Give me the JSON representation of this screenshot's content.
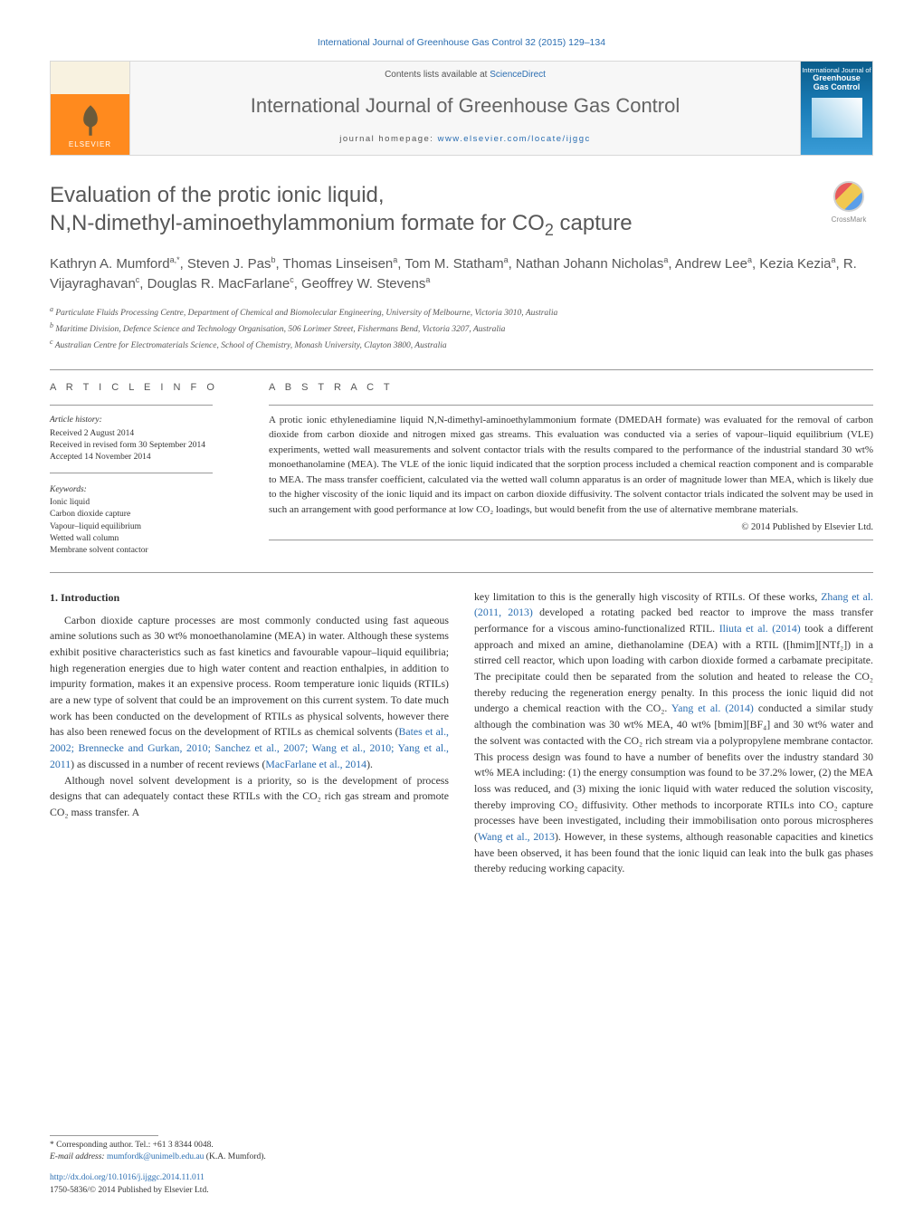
{
  "header_citation": "International Journal of Greenhouse Gas Control 32 (2015) 129–134",
  "masthead": {
    "publisher": "ELSEVIER",
    "contents_prefix": "Contents lists available at ",
    "contents_link": "ScienceDirect",
    "journal_title": "International Journal of Greenhouse Gas Control",
    "homepage_prefix": "journal homepage: ",
    "homepage_url": "www.elsevier.com/locate/ijggc",
    "cover_line1": "International Journal of",
    "cover_line2": "Greenhouse",
    "cover_line3": "Gas Control"
  },
  "crossmark_label": "CrossMark",
  "title_line1": "Evaluation of the protic ionic liquid,",
  "title_line2": "N,N-dimethyl-aminoethylammonium formate for CO",
  "title_sub": "2",
  "title_tail": " capture",
  "authors_html": "Kathryn A. Mumford<sup>a,*</sup>, Steven J. Pas<sup>b</sup>, Thomas Linseisen<sup>a</sup>, Tom M. Statham<sup>a</sup>, Nathan Johann Nicholas<sup>a</sup>, Andrew Lee<sup>a</sup>, Kezia Kezia<sup>a</sup>, R. Vijayraghavan<sup>c</sup>, Douglas R. MacFarlane<sup>c</sup>, Geoffrey W. Stevens<sup>a</sup>",
  "affiliations": {
    "a": "Particulate Fluids Processing Centre, Department of Chemical and Biomolecular Engineering, University of Melbourne, Victoria 3010, Australia",
    "b": "Maritime Division, Defence Science and Technology Organisation, 506 Lorimer Street, Fishermans Bend, Victoria 3207, Australia",
    "c": "Australian Centre for Electromaterials Science, School of Chemistry, Monash University, Clayton 3800, Australia"
  },
  "info_label": "A R T I C L E   I N F O",
  "abstract_label": "A B S T R A C T",
  "history_label": "Article history:",
  "history": {
    "received": "Received 2 August 2014",
    "revised": "Received in revised form 30 September 2014",
    "accepted": "Accepted 14 November 2014"
  },
  "keywords_label": "Keywords:",
  "keywords": [
    "Ionic liquid",
    "Carbon dioxide capture",
    "Vapour–liquid equilibrium",
    "Wetted wall column",
    "Membrane solvent contactor"
  ],
  "abstract_text": "A protic ionic ethylenediamine liquid N,N-dimethyl-aminoethylammonium formate (DMEDAH formate) was evaluated for the removal of carbon dioxide from carbon dioxide and nitrogen mixed gas streams. This evaluation was conducted via a series of vapour–liquid equilibrium (VLE) experiments, wetted wall measurements and solvent contactor trials with the results compared to the performance of the industrial standard 30 wt% monoethanolamine (MEA). The VLE of the ionic liquid indicated that the sorption process included a chemical reaction component and is comparable to MEA. The mass transfer coefficient, calculated via the wetted wall column apparatus is an order of magnitude lower than MEA, which is likely due to the higher viscosity of the ionic liquid and its impact on carbon dioxide diffusivity. The solvent contactor trials indicated the solvent may be used in such an arrangement with good performance at low CO₂ loadings, but would benefit from the use of alternative membrane materials.",
  "abstract_copyright": "© 2014 Published by Elsevier Ltd.",
  "section1_head": "1.  Introduction",
  "col1_p1": "Carbon dioxide capture processes are most commonly conducted using fast aqueous amine solutions such as 30 wt% monoethanolamine (MEA) in water. Although these systems exhibit positive characteristics such as fast kinetics and favourable vapour–liquid equilibria; high regeneration energies due to high water content and reaction enthalpies, in addition to impurity formation, makes it an expensive process. Room temperature ionic liquids (RTILs) are a new type of solvent that could be an improvement on this current system. To date much work has been conducted on the development of RTILs as physical solvents, however there has also been renewed focus on the development of RTILs as chemical solvents (",
  "col1_ref1": "Bates et al., 2002; Brennecke and Gurkan, 2010; Sanchez et al., 2007; Wang et al., 2010; Yang et al., 2011",
  "col1_p1b": ") as discussed in a number of recent reviews (",
  "col1_ref2": "MacFarlane et al., 2014",
  "col1_p1c": ").",
  "col1_p2": "Although novel solvent development is a priority, so is the development of process designs that can adequately contact these RTILs with the CO₂ rich gas stream and promote CO₂ mass transfer. A",
  "col2_p1a": "key limitation to this is the generally high viscosity of RTILs. Of these works, ",
  "col2_ref1": "Zhang et al. (2011, 2013)",
  "col2_p1b": " developed a rotating packed bed reactor to improve the mass transfer performance for a viscous amino-functionalized RTIL. ",
  "col2_ref2": "Iliuta et al. (2014)",
  "col2_p1c": " took a different approach and mixed an amine, diethanolamine (DEA) with a RTIL ([hmim][NTf₂]) in a stirred cell reactor, which upon loading with carbon dioxide formed a carbamate precipitate. The precipitate could then be separated from the solution and heated to release the CO₂ thereby reducing the regeneration energy penalty. In this process the ionic liquid did not undergo a chemical reaction with the CO₂. ",
  "col2_ref3": "Yang et al. (2014)",
  "col2_p1d": " conducted a similar study although the combination was 30 wt% MEA, 40 wt% [bmim][BF₄] and 30 wt% water and the solvent was contacted with the CO₂ rich stream via a polypropylene membrane contactor. This process design was found to have a number of benefits over the industry standard 30 wt% MEA including: (1) the energy consumption was found to be 37.2% lower, (2) the MEA loss was reduced, and (3) mixing the ionic liquid with water reduced the solution viscosity, thereby improving CO₂ diffusivity. Other methods to incorporate RTILs into CO₂ capture processes have been investigated, including their immobilisation onto porous microspheres (",
  "col2_ref4": "Wang et al., 2013",
  "col2_p1e": "). However, in these systems, although reasonable capacities and kinetics have been observed, it has been found that the ionic liquid can leak into the bulk gas phases thereby reducing working capacity.",
  "footnote_corr": "* Corresponding author. Tel.: +61 3 8344 0048.",
  "footnote_email_label": "E-mail address: ",
  "footnote_email": "mumfordk@unimelb.edu.au",
  "footnote_email_tail": " (K.A. Mumford).",
  "doi": "http://dx.doi.org/10.1016/j.ijggc.2014.11.011",
  "issn": "1750-5836/© 2014 Published by Elsevier Ltd.",
  "colors": {
    "link": "#2a6db1",
    "heading_grey": "#575757",
    "orange": "#ff8a1e",
    "cover_blue": "#1a7db8"
  }
}
